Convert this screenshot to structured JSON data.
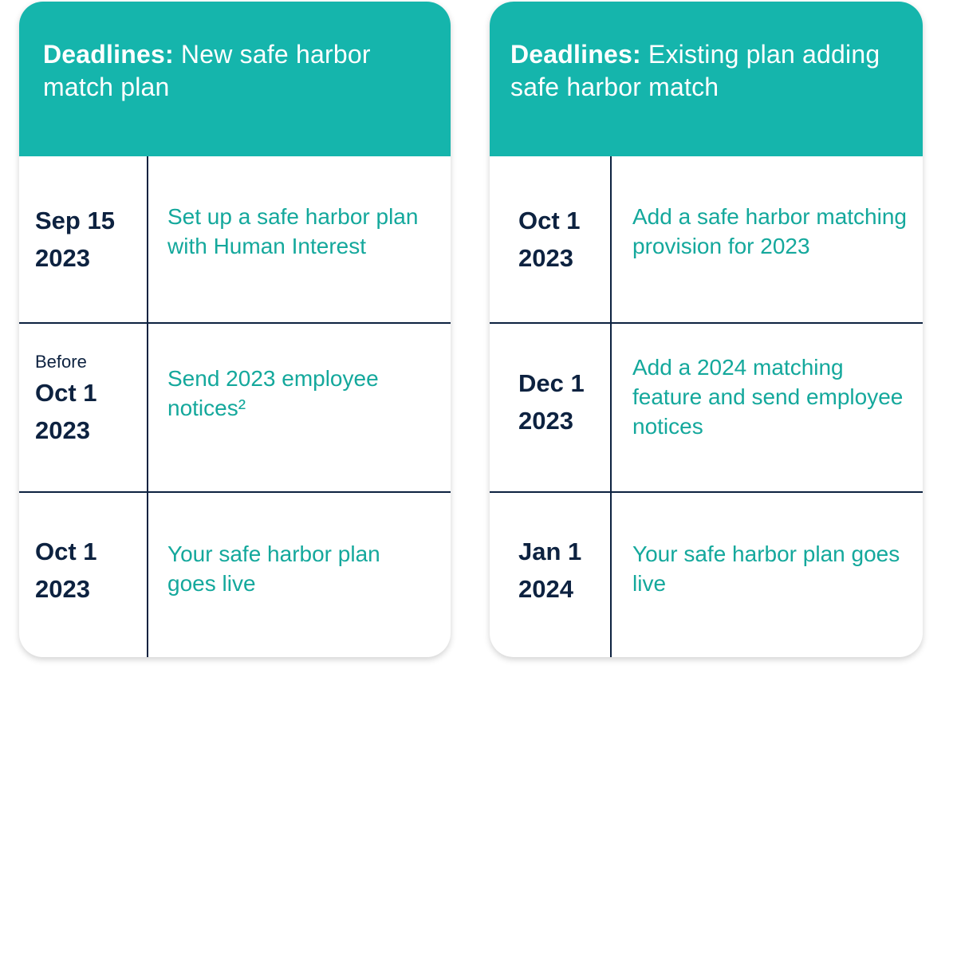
{
  "cards": [
    {
      "title_bold": "Deadlines:",
      "title_rest": " New safe harbor match plan",
      "rows": [
        {
          "pre": "",
          "date": "Sep 15",
          "year": "2023",
          "desc": "Set up a safe harbor plan with Human Interest"
        },
        {
          "pre": "Before",
          "date": "Oct 1",
          "year": "2023",
          "desc": "Send 2023 employee notices²"
        },
        {
          "pre": "",
          "date": "Oct 1",
          "year": "2023",
          "desc": "Your safe harbor plan goes live"
        }
      ]
    },
    {
      "title_bold": "Deadlines:",
      "title_rest": " Existing plan adding safe harbor match",
      "rows": [
        {
          "pre": "",
          "date": "Oct 1",
          "year": "2023",
          "desc": "Add a safe harbor matching provision for 2023"
        },
        {
          "pre": "",
          "date": "Dec 1",
          "year": "2023",
          "desc": "Add a 2024 matching feature and send employee notices"
        },
        {
          "pre": "",
          "date": "Jan 1",
          "year": "2024",
          "desc": "Your safe harbor plan goes live"
        }
      ]
    }
  ],
  "colors": {
    "header": "#15b5ac",
    "navy": "#0d2240",
    "teal_text": "#14a89c"
  }
}
